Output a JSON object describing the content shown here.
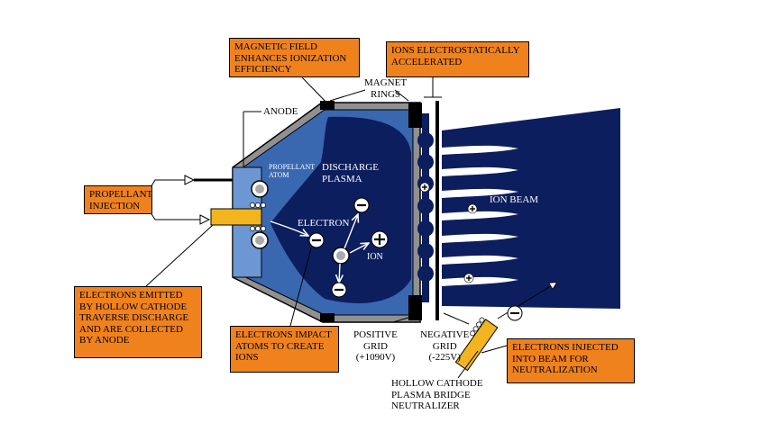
{
  "colors": {
    "dark_blue": "#0c1e5e",
    "mid_blue": "#3a68b0",
    "light_blue": "#6d97d2",
    "callout_orange": "#f0821e",
    "chamber_gray": "#909090",
    "cathode_yellow": "#f2b51f"
  },
  "callouts": {
    "magnetic_field": "MAGNETIC FIELD ENHANCES IONIZATION EFFICIENCY",
    "ions_accelerated": "IONS ELECTROSTATICALLY ACCELERATED",
    "propellant_injection": "PROPELLANT INJECTION",
    "electrons_emitted": "ELECTRONS EMITTED BY HOLLOW CATHODE TRAVERSE DISCHARGE AND ARE COLLECTED BY ANODE",
    "electrons_impact": "ELECTRONS IMPACT ATOMS TO CREATE IONS",
    "electrons_injected": "ELECTRONS INJECTED INTO BEAM FOR NEUTRALIZATION"
  },
  "labels": {
    "magnet_rings_1": "MAGNET",
    "magnet_rings_2": "RINGS",
    "anode": "ANODE",
    "positive_grid_1": "POSITIVE",
    "positive_grid_2": "GRID",
    "positive_grid_3": "(+1090V)",
    "negative_grid_1": "NEGATIVE",
    "negative_grid_2": "GRID",
    "negative_grid_3": "(-225V)",
    "hollow_cathode_1": "HOLLOW CATHODE",
    "hollow_cathode_2": "PLASMA BRIDGE",
    "hollow_cathode_3": "NEUTRALIZER"
  },
  "inner_labels": {
    "propellant_atom_1": "PROPELLANT",
    "propellant_atom_2": "ATOM",
    "discharge_plasma_1": "DISCHARGE",
    "discharge_plasma_2": "PLASMA",
    "electron": "ELECTRON",
    "ion": "ION",
    "ion_beam": "ION BEAM"
  },
  "icons": {
    "minus": "−",
    "plus": "+"
  }
}
